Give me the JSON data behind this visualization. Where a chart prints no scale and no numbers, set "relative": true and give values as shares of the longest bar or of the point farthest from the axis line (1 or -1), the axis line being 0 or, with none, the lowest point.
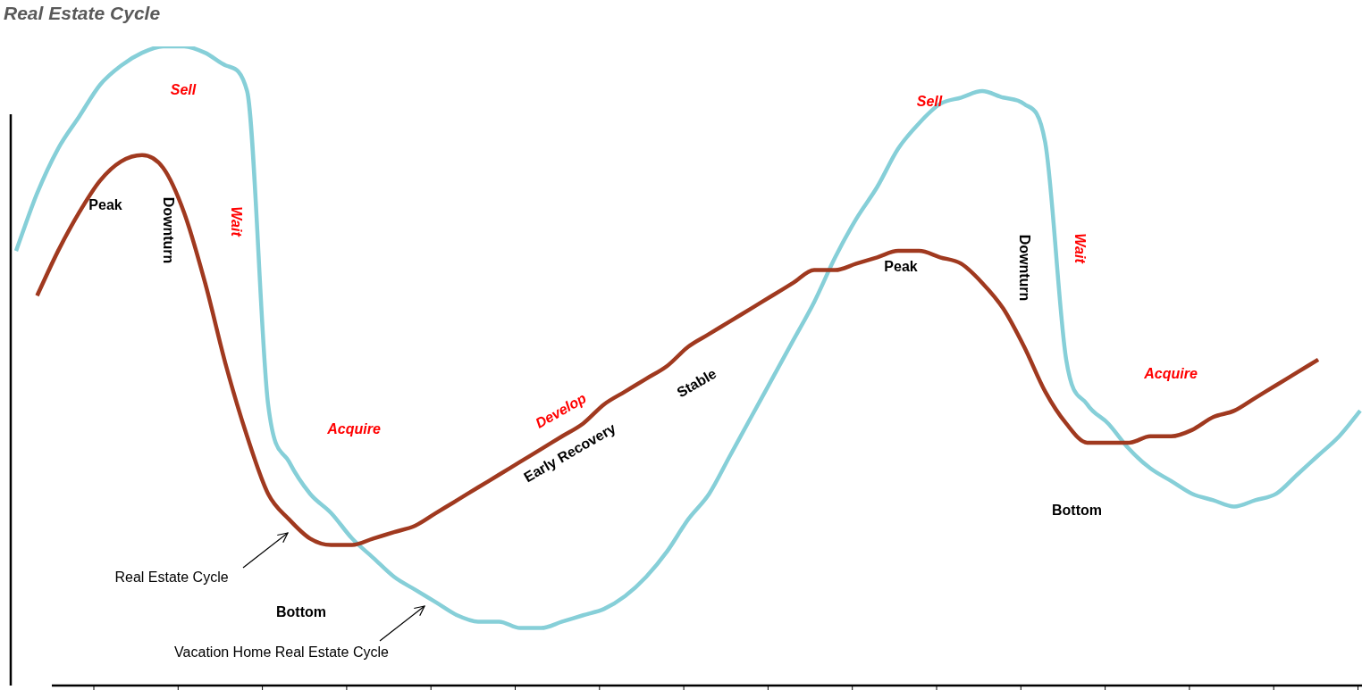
{
  "chart_data": {
    "type": "line",
    "title": "Real Estate Cycle",
    "relative": true,
    "legend": false,
    "marker": "none",
    "categories": [
      null,
      null,
      null,
      null,
      null,
      null,
      null,
      null,
      null,
      null,
      null,
      null,
      null,
      null,
      null,
      null,
      null,
      null,
      null,
      null,
      null,
      null,
      null,
      null,
      null,
      null,
      null,
      null,
      null,
      null,
      null,
      null,
      null,
      null,
      null,
      null,
      null,
      null,
      null,
      null,
      null,
      null,
      null,
      null,
      null,
      null,
      null,
      null,
      null,
      null,
      null,
      null,
      null,
      null,
      null,
      null,
      null,
      null,
      null,
      null,
      null,
      null,
      null,
      null,
      null
    ],
    "series": [
      {
        "name": "Real Estate Cycle",
        "color": "#a0391f",
        "values": [
          null,
          0.61,
          0.68,
          0.74,
          0.79,
          0.82,
          0.83,
          0.81,
          0.74,
          0.63,
          0.5,
          0.39,
          0.3,
          0.26,
          0.23,
          0.22,
          0.22,
          0.23,
          0.24,
          0.25,
          0.27,
          0.29,
          0.31,
          0.33,
          0.35,
          0.37,
          0.39,
          0.41,
          0.44,
          0.46,
          0.48,
          0.5,
          0.53,
          0.55,
          0.57,
          0.59,
          0.61,
          0.63,
          0.65,
          0.65,
          0.66,
          0.67,
          0.68,
          0.68,
          0.67,
          0.66,
          0.63,
          0.59,
          0.53,
          0.46,
          0.41,
          0.38,
          0.38,
          0.38,
          0.39,
          0.39,
          0.4,
          0.42,
          0.43,
          0.45,
          0.47,
          0.49,
          0.51,
          null,
          null
        ]
      },
      {
        "name": "Vacation Home Real Estate Cycle",
        "color": "#86cfd8",
        "values": [
          0.68,
          0.77,
          0.84,
          0.89,
          0.94,
          0.97,
          0.99,
          1.0,
          1.0,
          0.99,
          0.97,
          0.93,
          0.44,
          0.35,
          0.3,
          0.27,
          0.23,
          0.2,
          0.17,
          0.15,
          0.13,
          0.11,
          0.1,
          0.1,
          0.09,
          0.09,
          0.1,
          0.11,
          0.12,
          0.14,
          0.17,
          0.21,
          0.26,
          0.3,
          0.36,
          0.42,
          0.48,
          0.54,
          0.6,
          0.67,
          0.73,
          0.78,
          0.84,
          0.88,
          0.91,
          0.92,
          0.93,
          0.92,
          0.91,
          0.85,
          0.51,
          0.44,
          0.41,
          0.37,
          0.34,
          0.32,
          0.3,
          0.29,
          0.28,
          0.29,
          0.3,
          0.33,
          0.36,
          0.39,
          0.43
        ]
      }
    ],
    "annotations": [
      "Sell",
      "Peak",
      "Downturn",
      "Wait",
      "Acquire",
      "Develop",
      "Early Recovery",
      "Stable",
      "Bottom",
      "Sell",
      "Peak",
      "Downturn",
      "Wait",
      "Acquire",
      "Bottom"
    ]
  }
}
